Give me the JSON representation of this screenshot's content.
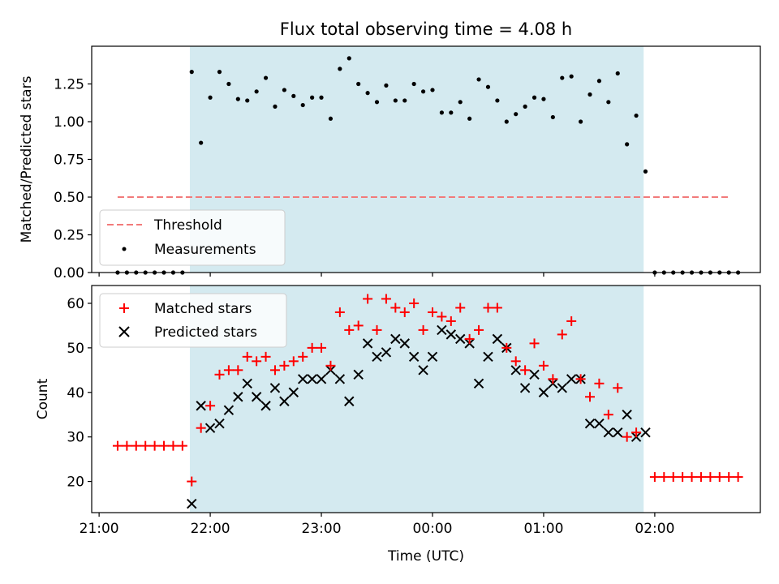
{
  "chart_data": [
    {
      "type": "scatter",
      "title": "Flux total observing time = 4.08 h",
      "xlabel": "",
      "ylabel": "Matched/Predicted stars",
      "xlim": [
        "20:56",
        "02:57"
      ],
      "ylim": [
        0,
        1.5
      ],
      "yticks": [
        "0.00",
        "0.25",
        "0.50",
        "0.75",
        "1.00",
        "1.25"
      ],
      "grid": false,
      "legend_position": "lower-left",
      "observing_window": [
        "21:49",
        "01:54"
      ],
      "observing_window_color": "#d4eaf0",
      "threshold": {
        "name": "Threshold",
        "value": 0.5,
        "x_range": [
          "21:10",
          "02:40"
        ],
        "color": "#f27a7a"
      },
      "series": [
        {
          "name": "Measurements",
          "color": "#000000",
          "points": [
            [
              "21:10",
              0
            ],
            [
              "21:15",
              0
            ],
            [
              "21:20",
              0
            ],
            [
              "21:25",
              0
            ],
            [
              "21:30",
              0
            ],
            [
              "21:35",
              0
            ],
            [
              "21:40",
              0
            ],
            [
              "21:45",
              0
            ],
            [
              "21:50",
              1.33
            ],
            [
              "21:55",
              0.86
            ],
            [
              "22:00",
              1.16
            ],
            [
              "22:05",
              1.33
            ],
            [
              "22:10",
              1.25
            ],
            [
              "22:15",
              1.15
            ],
            [
              "22:20",
              1.14
            ],
            [
              "22:25",
              1.2
            ],
            [
              "22:30",
              1.29
            ],
            [
              "22:35",
              1.1
            ],
            [
              "22:40",
              1.21
            ],
            [
              "22:45",
              1.17
            ],
            [
              "22:50",
              1.11
            ],
            [
              "22:55",
              1.16
            ],
            [
              "23:00",
              1.16
            ],
            [
              "23:05",
              1.02
            ],
            [
              "23:10",
              1.35
            ],
            [
              "23:15",
              1.42
            ],
            [
              "23:20",
              1.25
            ],
            [
              "23:25",
              1.19
            ],
            [
              "23:30",
              1.13
            ],
            [
              "23:35",
              1.24
            ],
            [
              "23:40",
              1.14
            ],
            [
              "23:45",
              1.14
            ],
            [
              "23:50",
              1.25
            ],
            [
              "23:55",
              1.2
            ],
            [
              "00:00",
              1.21
            ],
            [
              "00:05",
              1.06
            ],
            [
              "00:10",
              1.06
            ],
            [
              "00:15",
              1.13
            ],
            [
              "00:20",
              1.02
            ],
            [
              "00:25",
              1.28
            ],
            [
              "00:30",
              1.23
            ],
            [
              "00:35",
              1.14
            ],
            [
              "00:40",
              1.0
            ],
            [
              "00:45",
              1.05
            ],
            [
              "00:50",
              1.1
            ],
            [
              "00:55",
              1.16
            ],
            [
              "01:00",
              1.15
            ],
            [
              "01:05",
              1.03
            ],
            [
              "01:10",
              1.29
            ],
            [
              "01:15",
              1.3
            ],
            [
              "01:20",
              1.0
            ],
            [
              "01:25",
              1.18
            ],
            [
              "01:30",
              1.27
            ],
            [
              "01:35",
              1.13
            ],
            [
              "01:40",
              1.32
            ],
            [
              "01:45",
              0.85
            ],
            [
              "01:50",
              1.04
            ],
            [
              "01:55",
              0.67
            ],
            [
              "02:00",
              0
            ],
            [
              "02:05",
              0
            ],
            [
              "02:10",
              0
            ],
            [
              "02:15",
              0
            ],
            [
              "02:20",
              0
            ],
            [
              "02:25",
              0
            ],
            [
              "02:30",
              0
            ],
            [
              "02:35",
              0
            ],
            [
              "02:40",
              0
            ],
            [
              "02:45",
              0
            ]
          ]
        }
      ]
    },
    {
      "type": "scatter",
      "xlabel": "Time (UTC)",
      "ylabel": "Count",
      "xlim": [
        "20:56",
        "02:57"
      ],
      "ylim": [
        13,
        64
      ],
      "xticks": [
        "21:00",
        "22:00",
        "23:00",
        "00:00",
        "01:00",
        "02:00"
      ],
      "yticks": [
        20,
        30,
        40,
        50,
        60
      ],
      "grid": false,
      "legend_position": "upper-left",
      "observing_window": [
        "21:49",
        "01:54"
      ],
      "observing_window_color": "#d4eaf0",
      "series": [
        {
          "name": "Matched stars",
          "marker": "+",
          "color": "#ff0000",
          "points": [
            [
              "21:10",
              28
            ],
            [
              "21:15",
              28
            ],
            [
              "21:20",
              28
            ],
            [
              "21:25",
              28
            ],
            [
              "21:30",
              28
            ],
            [
              "21:35",
              28
            ],
            [
              "21:40",
              28
            ],
            [
              "21:45",
              28
            ],
            [
              "21:50",
              20
            ],
            [
              "21:55",
              32
            ],
            [
              "22:00",
              37
            ],
            [
              "22:05",
              44
            ],
            [
              "22:10",
              45
            ],
            [
              "22:15",
              45
            ],
            [
              "22:20",
              48
            ],
            [
              "22:25",
              47
            ],
            [
              "22:30",
              48
            ],
            [
              "22:35",
              45
            ],
            [
              "22:40",
              46
            ],
            [
              "22:45",
              47
            ],
            [
              "22:50",
              48
            ],
            [
              "22:55",
              50
            ],
            [
              "23:00",
              50
            ],
            [
              "23:05",
              46
            ],
            [
              "23:10",
              58
            ],
            [
              "23:15",
              54
            ],
            [
              "23:20",
              55
            ],
            [
              "23:25",
              61
            ],
            [
              "23:30",
              54
            ],
            [
              "23:35",
              61
            ],
            [
              "23:40",
              59
            ],
            [
              "23:45",
              58
            ],
            [
              "23:50",
              60
            ],
            [
              "23:55",
              54
            ],
            [
              "00:00",
              58
            ],
            [
              "00:05",
              57
            ],
            [
              "00:10",
              56
            ],
            [
              "00:15",
              59
            ],
            [
              "00:20",
              52
            ],
            [
              "00:25",
              54
            ],
            [
              "00:30",
              59
            ],
            [
              "00:35",
              59
            ],
            [
              "00:40",
              50
            ],
            [
              "00:45",
              47
            ],
            [
              "00:50",
              45
            ],
            [
              "00:55",
              51
            ],
            [
              "01:00",
              46
            ],
            [
              "01:05",
              43
            ],
            [
              "01:10",
              53
            ],
            [
              "01:15",
              56
            ],
            [
              "01:20",
              43
            ],
            [
              "01:25",
              39
            ],
            [
              "01:30",
              42
            ],
            [
              "01:35",
              35
            ],
            [
              "01:40",
              41
            ],
            [
              "01:45",
              30
            ],
            [
              "01:50",
              31
            ],
            [
              "02:00",
              21
            ],
            [
              "02:05",
              21
            ],
            [
              "02:10",
              21
            ],
            [
              "02:15",
              21
            ],
            [
              "02:20",
              21
            ],
            [
              "02:25",
              21
            ],
            [
              "02:30",
              21
            ],
            [
              "02:35",
              21
            ],
            [
              "02:40",
              21
            ],
            [
              "02:45",
              21
            ]
          ]
        },
        {
          "name": "Predicted stars",
          "marker": "x",
          "color": "#000000",
          "points": [
            [
              "21:50",
              15
            ],
            [
              "21:55",
              37
            ],
            [
              "22:00",
              32
            ],
            [
              "22:05",
              33
            ],
            [
              "22:10",
              36
            ],
            [
              "22:15",
              39
            ],
            [
              "22:20",
              42
            ],
            [
              "22:25",
              39
            ],
            [
              "22:30",
              37
            ],
            [
              "22:35",
              41
            ],
            [
              "22:40",
              38
            ],
            [
              "22:45",
              40
            ],
            [
              "22:50",
              43
            ],
            [
              "22:55",
              43
            ],
            [
              "23:00",
              43
            ],
            [
              "23:05",
              45
            ],
            [
              "23:10",
              43
            ],
            [
              "23:15",
              38
            ],
            [
              "23:20",
              44
            ],
            [
              "23:25",
              51
            ],
            [
              "23:30",
              48
            ],
            [
              "23:35",
              49
            ],
            [
              "23:40",
              52
            ],
            [
              "23:45",
              51
            ],
            [
              "23:50",
              48
            ],
            [
              "23:55",
              45
            ],
            [
              "00:00",
              48
            ],
            [
              "00:05",
              54
            ],
            [
              "00:10",
              53
            ],
            [
              "00:15",
              52
            ],
            [
              "00:20",
              51
            ],
            [
              "00:25",
              42
            ],
            [
              "00:30",
              48
            ],
            [
              "00:35",
              52
            ],
            [
              "00:40",
              50
            ],
            [
              "00:45",
              45
            ],
            [
              "00:50",
              41
            ],
            [
              "00:55",
              44
            ],
            [
              "01:00",
              40
            ],
            [
              "01:05",
              42
            ],
            [
              "01:10",
              41
            ],
            [
              "01:15",
              43
            ],
            [
              "01:20",
              43
            ],
            [
              "01:25",
              33
            ],
            [
              "01:30",
              33
            ],
            [
              "01:35",
              31
            ],
            [
              "01:40",
              31
            ],
            [
              "01:45",
              35
            ],
            [
              "01:50",
              30
            ],
            [
              "01:55",
              31
            ]
          ]
        }
      ]
    }
  ]
}
